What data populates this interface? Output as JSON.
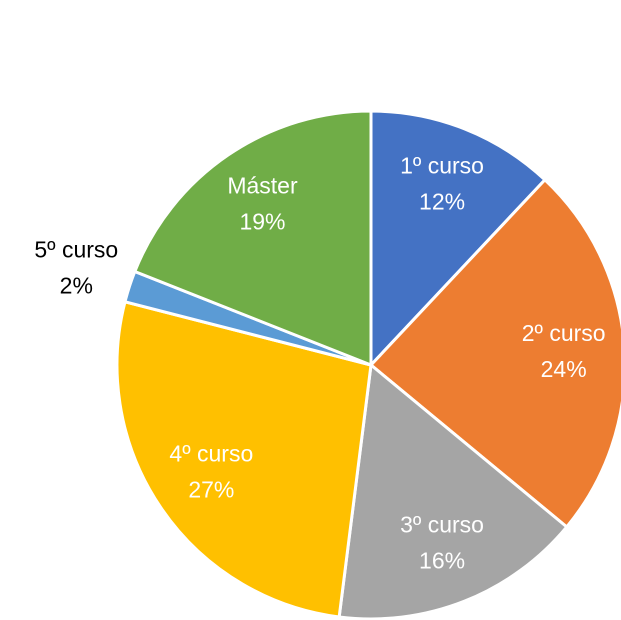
{
  "chart_data": {
    "type": "pie",
    "categories": [
      "1º curso",
      "2º curso",
      "3º curso",
      "4º curso",
      "5º curso",
      "Máster"
    ],
    "values": [
      12,
      24,
      16,
      27,
      2,
      19
    ],
    "value_labels": [
      "12%",
      "24%",
      "16%",
      "27%",
      "2%",
      "19%"
    ],
    "colors": [
      "#4472c4",
      "#ed7d31",
      "#a5a5a5",
      "#ffc000",
      "#5b9bd5",
      "#70ad47"
    ]
  }
}
